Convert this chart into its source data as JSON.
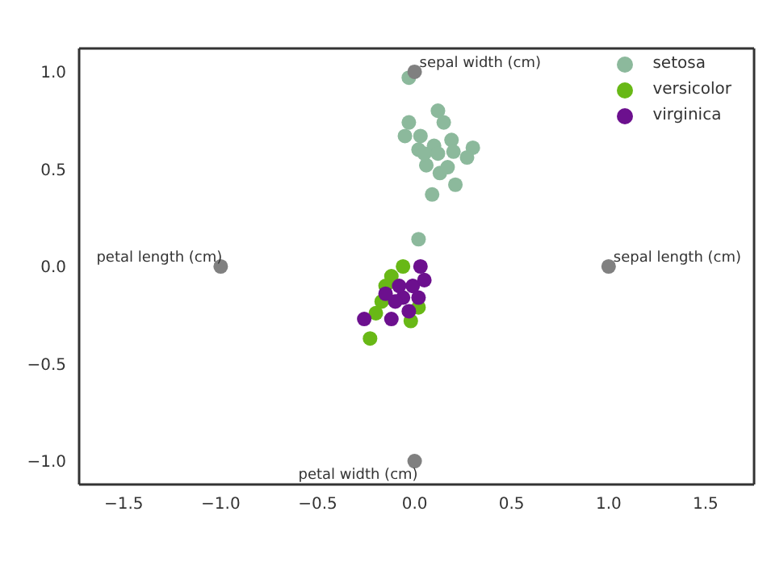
{
  "chart_data": {
    "type": "scatter",
    "legend": "top right",
    "grid": false,
    "marker": "circle",
    "xlim": [
      -1.73,
      1.75
    ],
    "ylim": [
      -1.12,
      1.12
    ],
    "xticks": [
      {
        "value": -1.5,
        "label": "−1.5"
      },
      {
        "value": -1,
        "label": "−1.0"
      },
      {
        "value": -0.5,
        "label": "−0.5"
      },
      {
        "value": 0,
        "label": "0.0"
      },
      {
        "value": 0.5,
        "label": "0.5"
      },
      {
        "value": 1,
        "label": "1.0"
      },
      {
        "value": 1.5,
        "label": "1.5"
      }
    ],
    "yticks": [
      {
        "value": -1,
        "label": "−1.0"
      },
      {
        "value": -0.5,
        "label": "−0.5"
      },
      {
        "value": 0,
        "label": "0.0"
      },
      {
        "value": 0.5,
        "label": "0.5"
      },
      {
        "value": 1,
        "label": "1.0"
      }
    ],
    "annotations": [
      {
        "text": "sepal length (cm)",
        "x": 1,
        "y": 0
      },
      {
        "text": "sepal width (cm)",
        "x": 0,
        "y": 1
      },
      {
        "text": "petal length (cm)",
        "x": -1,
        "y": 0
      },
      {
        "text": "petal width (cm)",
        "x": 0,
        "y": -1
      }
    ],
    "series": [
      {
        "name": "setosa",
        "color": "#8cb99c",
        "x": [
          -0.03,
          0.12,
          0.15,
          -0.03,
          -0.05,
          0.03,
          0.1,
          0.19,
          0.3,
          0.27,
          0.06,
          0.02,
          0.2,
          0.13,
          0.21,
          0.09,
          0.02,
          0.12,
          0.17,
          0.05
        ],
        "values": [
          0.97,
          0.8,
          0.74,
          0.74,
          0.67,
          0.67,
          0.62,
          0.65,
          0.61,
          0.56,
          0.52,
          0.6,
          0.59,
          0.48,
          0.42,
          0.37,
          0.14,
          0.58,
          0.51,
          0.58
        ]
      },
      {
        "name": "versicolor",
        "color": "#68b816",
        "x": [
          -0.23,
          -0.17,
          -0.12,
          -0.06,
          -0.02,
          -0.2,
          -0.15,
          0.02
        ],
        "values": [
          -0.37,
          -0.18,
          -0.05,
          0.0,
          -0.28,
          -0.24,
          -0.1,
          -0.21
        ]
      },
      {
        "name": "virginica",
        "color": "#6c108e",
        "x": [
          -0.26,
          0.03,
          -0.12,
          -0.06,
          -0.01,
          -0.1,
          0.02,
          -0.03,
          0.05,
          -0.08,
          -0.15
        ],
        "values": [
          -0.27,
          0.0,
          -0.27,
          -0.16,
          -0.1,
          -0.18,
          -0.16,
          -0.23,
          -0.07,
          -0.1,
          -0.14
        ]
      },
      {
        "color": "#808080",
        "x": [
          1,
          0,
          -1,
          0
        ],
        "values": [
          0,
          1,
          0,
          -1
        ]
      }
    ]
  }
}
